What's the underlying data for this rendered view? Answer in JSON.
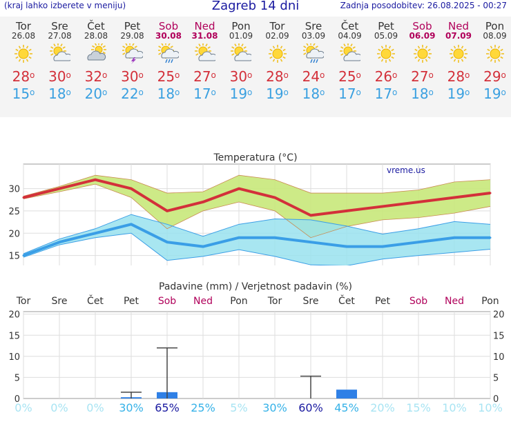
{
  "header": {
    "menu_hint": "(kraj lahko izberete v meniju)",
    "title": "Zagreb 14 dni",
    "updated": "Zadnja posodobitev: 26.08.2025 - 00:27"
  },
  "forecast": [
    {
      "day": "Tor",
      "date": "26.08",
      "icon": "sun-icon",
      "max": "28",
      "min": "15",
      "weekend": false
    },
    {
      "day": "Sre",
      "date": "27.08",
      "icon": "sun-cloud-icon",
      "max": "30",
      "min": "18",
      "weekend": false
    },
    {
      "day": "Čet",
      "date": "28.08",
      "icon": "cloudy-icon",
      "max": "32",
      "min": "20",
      "weekend": false
    },
    {
      "day": "Pet",
      "date": "29.08",
      "icon": "thunderstorm-icon",
      "max": "30",
      "min": "22",
      "weekend": false
    },
    {
      "day": "Sob",
      "date": "30.08",
      "icon": "sun-rain-icon",
      "max": "25",
      "min": "18",
      "weekend": true
    },
    {
      "day": "Ned",
      "date": "31.08",
      "icon": "sun-cloud-icon",
      "max": "27",
      "min": "17",
      "weekend": true
    },
    {
      "day": "Pon",
      "date": "01.09",
      "icon": "sun-cloud-icon",
      "max": "30",
      "min": "19",
      "weekend": false
    },
    {
      "day": "Tor",
      "date": "02.09",
      "icon": "sun-icon",
      "max": "28",
      "min": "19",
      "weekend": false
    },
    {
      "day": "Sre",
      "date": "03.09",
      "icon": "sun-rain-icon",
      "max": "24",
      "min": "18",
      "weekend": false
    },
    {
      "day": "Čet",
      "date": "04.09",
      "icon": "sun-cloud-icon",
      "max": "25",
      "min": "17",
      "weekend": false
    },
    {
      "day": "Pet",
      "date": "05.09",
      "icon": "sun-icon",
      "max": "26",
      "min": "17",
      "weekend": false
    },
    {
      "day": "Sob",
      "date": "06.09",
      "icon": "sun-icon",
      "max": "27",
      "min": "18",
      "weekend": true
    },
    {
      "day": "Ned",
      "date": "07.09",
      "icon": "sun-icon",
      "max": "28",
      "min": "19",
      "weekend": true
    },
    {
      "day": "Pon",
      "date": "08.09",
      "icon": "sun-icon",
      "max": "29",
      "min": "19",
      "weekend": false
    }
  ],
  "chart_data": [
    {
      "type": "line",
      "title": "Temperatura (°C)",
      "watermark": "vreme.us",
      "x": [
        "26.08",
        "27.08",
        "28.08",
        "29.08",
        "30.08",
        "31.08",
        "01.09",
        "02.09",
        "03.09",
        "04.09",
        "05.09",
        "06.09",
        "07.09",
        "08.09"
      ],
      "yticks": [
        15,
        20,
        25,
        30
      ],
      "ylim": [
        12,
        35.5
      ],
      "series": [
        {
          "values": [
            28,
            30,
            32,
            30,
            25,
            27,
            30,
            28,
            24,
            25,
            26,
            27,
            28,
            29
          ],
          "color": "#d3303a"
        },
        {
          "values": [
            15,
            18,
            20,
            22,
            18,
            17,
            19,
            19,
            18,
            17,
            17,
            18,
            19,
            19
          ],
          "color": "#3a9ee6"
        }
      ],
      "max_band": {
        "upper": [
          28.3,
          30.5,
          33.0,
          32.0,
          29.0,
          29.3,
          33.0,
          32.0,
          29.0,
          29.0,
          29.0,
          29.7,
          31.5,
          32.0
        ],
        "lower": [
          27.7,
          29.3,
          31.0,
          28.0,
          21.0,
          25.0,
          27.0,
          25.0,
          19.0,
          21.5,
          23.0,
          23.5,
          24.5,
          26.0
        ],
        "color": "#c8e87a"
      },
      "min_band": {
        "upper": [
          15.4,
          18.7,
          21.0,
          24.2,
          22.0,
          19.3,
          22.0,
          23.2,
          23.0,
          21.6,
          19.8,
          21.0,
          22.6,
          22.0
        ],
        "lower": [
          14.6,
          17.4,
          19.0,
          20.0,
          13.9,
          14.8,
          16.3,
          14.8,
          12.9,
          12.7,
          14.2,
          15.0,
          15.7,
          16.4
        ],
        "color": "#99e2ef"
      },
      "grid": true
    },
    {
      "type": "bar",
      "title": "Padavine (mm) / Verjetnost padavin (%)",
      "categories": [
        "Tor",
        "Sre",
        "Čet",
        "Pet",
        "Sob",
        "Ned",
        "Pon",
        "Tor",
        "Sre",
        "Čet",
        "Pet",
        "Sob",
        "Ned",
        "Pon"
      ],
      "weekend": [
        false,
        false,
        false,
        false,
        true,
        true,
        false,
        false,
        false,
        false,
        false,
        true,
        true,
        false
      ],
      "values": [
        0,
        0,
        0,
        0.3,
        1.5,
        0,
        0,
        0,
        0,
        2.1,
        0,
        0,
        0,
        0
      ],
      "error_high": [
        null,
        null,
        null,
        1.5,
        12,
        null,
        null,
        null,
        5.3,
        null,
        null,
        null,
        null,
        null
      ],
      "probabilities": [
        "0%",
        "0%",
        "0%",
        "30%",
        "65%",
        "25%",
        "5%",
        "30%",
        "60%",
        "45%",
        "20%",
        "15%",
        "10%",
        "10%"
      ],
      "prob_strength": [
        0,
        0,
        0,
        1,
        2,
        1,
        0,
        1,
        2,
        1,
        0,
        0,
        0,
        0
      ],
      "yticks": [
        0,
        5,
        10,
        15,
        20
      ],
      "ylim": [
        0,
        20.6
      ],
      "bar_color": "#2f80e6",
      "grid": true
    }
  ]
}
